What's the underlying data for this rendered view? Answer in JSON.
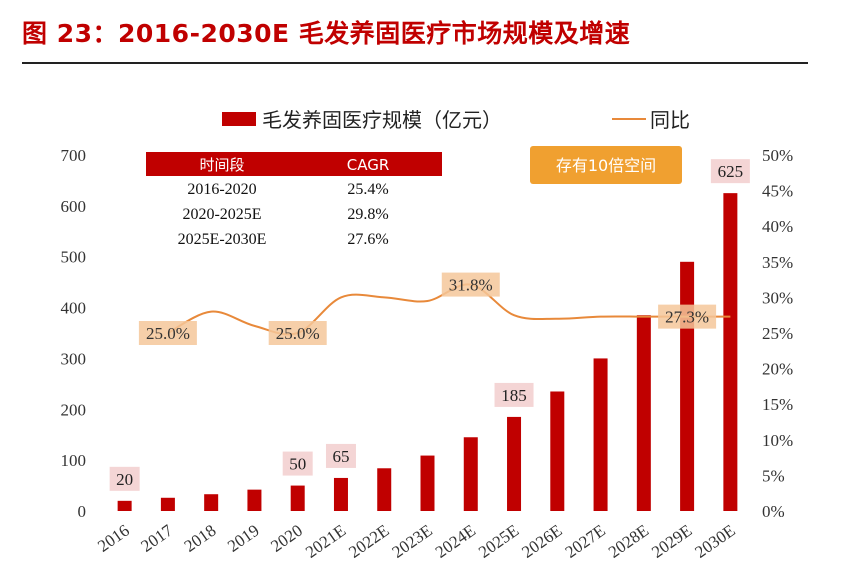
{
  "figure_title": "图 23：2016-2030E 毛发养固医疗市场规模及增速",
  "chart_data": {
    "type": "bar",
    "categories": [
      "2016",
      "2017",
      "2018",
      "2019",
      "2020",
      "2021E",
      "2022E",
      "2023E",
      "2024E",
      "2025E",
      "2026E",
      "2027E",
      "2028E",
      "2029E",
      "2030E"
    ],
    "series": [
      {
        "name": "毛发养固医疗规模（亿元）",
        "type": "bar",
        "axis": "left",
        "values": [
          20,
          26,
          33,
          42,
          50,
          65,
          84,
          109,
          145,
          185,
          235,
          300,
          385,
          490,
          625
        ]
      },
      {
        "name": "同比",
        "type": "line",
        "axis": "right",
        "values": [
          null,
          25.0,
          28.0,
          26.0,
          25.0,
          30.0,
          30.0,
          29.5,
          31.8,
          27.5,
          27.0,
          27.3,
          27.3,
          27.3,
          27.3
        ]
      }
    ],
    "ylim_left": [
      0,
      700
    ],
    "yticks_left": [
      "0",
      "100",
      "200",
      "300",
      "400",
      "500",
      "600",
      "700"
    ],
    "ylim_right": [
      0,
      50
    ],
    "yticks_right": [
      "0%",
      "5%",
      "10%",
      "15%",
      "20%",
      "25%",
      "30%",
      "35%",
      "40%",
      "45%",
      "50%"
    ],
    "bar_labels": [
      {
        "index": 0,
        "text": "20"
      },
      {
        "index": 4,
        "text": "50"
      },
      {
        "index": 5,
        "text": "65"
      },
      {
        "index": 9,
        "text": "185"
      },
      {
        "index": 14,
        "text": "625"
      }
    ],
    "line_labels": [
      {
        "index": 1,
        "text": "25.0%"
      },
      {
        "index": 4,
        "text": "25.0%"
      },
      {
        "index": 8,
        "text": "31.8%"
      },
      {
        "index": 13,
        "text": "27.3%"
      }
    ],
    "cagr_table": {
      "headers": [
        "时间段",
        "CAGR"
      ],
      "rows": [
        [
          "2016-2020",
          "25.4%"
        ],
        [
          "2020-2025E",
          "29.8%"
        ],
        [
          "2025E-2030E",
          "27.6%"
        ]
      ]
    },
    "annotation": "存有10倍空间",
    "legend_position": "top",
    "grid": false
  },
  "colors": {
    "bar": "#c00000",
    "line": "#e8893a",
    "label_box": "#f4d5d5",
    "line_label_box": "#f5c79a",
    "annotation_box": "#f0a030",
    "table_header": "#c00000",
    "title": "#c00000"
  }
}
